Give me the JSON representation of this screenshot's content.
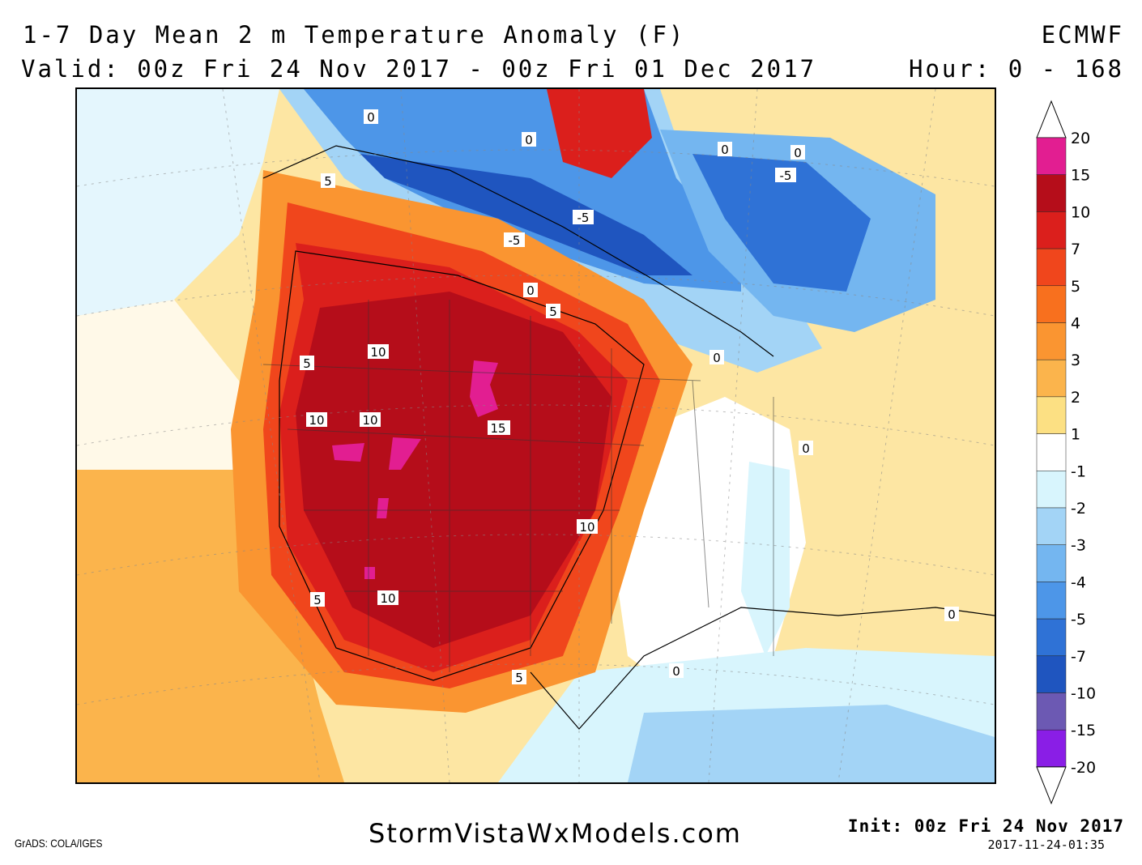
{
  "header": {
    "title_line1": "1-7 Day Mean 2 m Temperature Anomaly (F)",
    "title_line2": "Valid: 00z Fri 24 Nov 2017 - 00z Fri 01 Dec 2017",
    "model": "ECMWF",
    "hour_range": "Hour: 0 - 168"
  },
  "colorbar": {
    "levels": [
      {
        "label": "20",
        "color": "#e21e91"
      },
      {
        "label": "15",
        "color": "#b50d1a"
      },
      {
        "label": "10",
        "color": "#db1f1c"
      },
      {
        "label": "7",
        "color": "#f0461c"
      },
      {
        "label": "5",
        "color": "#f8701e"
      },
      {
        "label": "4",
        "color": "#fa9531"
      },
      {
        "label": "3",
        "color": "#fbb44c"
      },
      {
        "label": "2",
        "color": "#fce083"
      },
      {
        "label": "1",
        "color": "#ffffff"
      },
      {
        "label": "-1",
        "color": "#d8f5fd"
      },
      {
        "label": "-2",
        "color": "#a3d4f6"
      },
      {
        "label": "-3",
        "color": "#74b6f0"
      },
      {
        "label": "-4",
        "color": "#4d96e8"
      },
      {
        "label": "-5",
        "color": "#2f72d6"
      },
      {
        "label": "-7",
        "color": "#1f55bf"
      },
      {
        "label": "-10",
        "color": "#6c59b3"
      },
      {
        "label": "-15",
        "color": "#8a1ee6"
      },
      {
        "label": "-20",
        "color": "#ffffff"
      }
    ]
  },
  "map": {
    "contour_labels": [
      "15",
      "10",
      "5",
      "0",
      "0",
      "-5",
      "-5",
      "-5",
      "0",
      "5",
      "10",
      "5",
      "0",
      "15",
      "10",
      "10",
      "10",
      "10",
      "5",
      "5",
      "0",
      "0",
      "0",
      "0",
      "0",
      "0"
    ]
  },
  "footer": {
    "watermark": "StormVistaWxModels.com",
    "grads_credit": "GrADS: COLA/IGES",
    "init": "Init: 00z Fri 24 Nov 2017",
    "timestamp": "2017-11-24-01:35"
  }
}
